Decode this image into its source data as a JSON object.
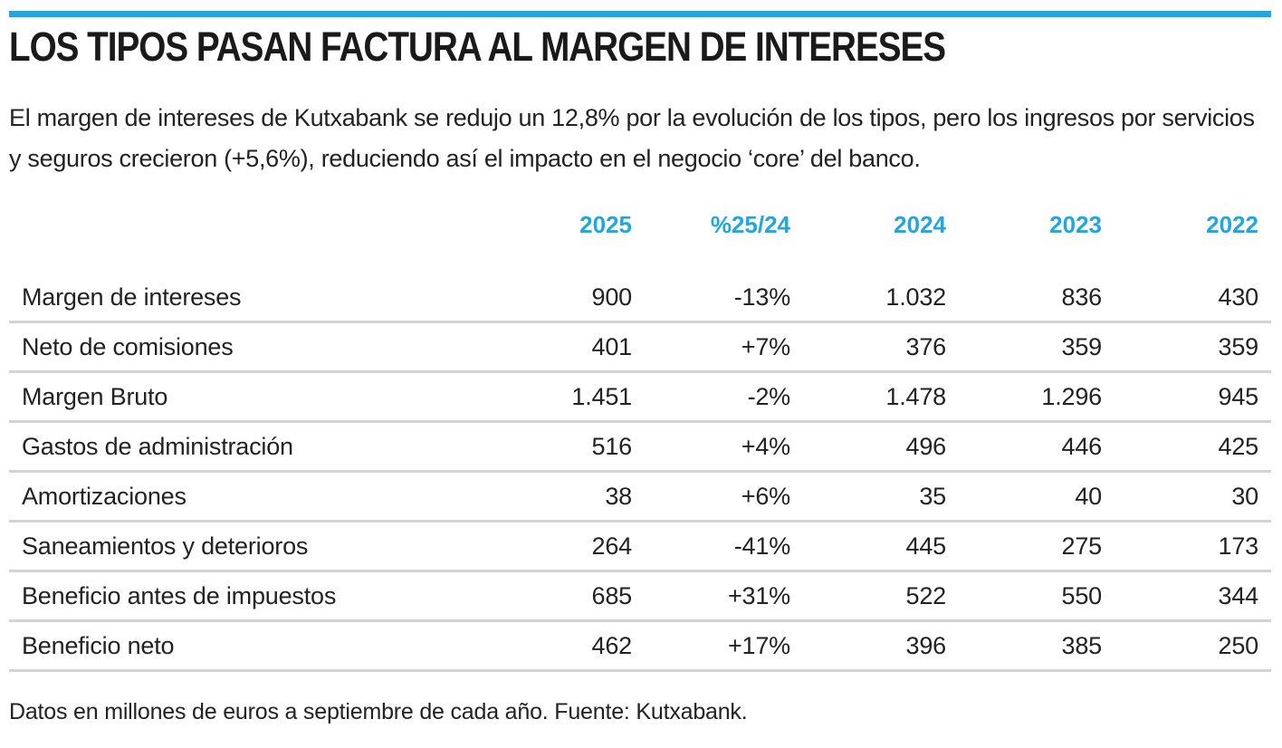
{
  "chart_data": {
    "type": "table",
    "title": "LOS TIPOS PASAN FACTURA AL MARGEN DE INTERESES",
    "subtitle": "El margen de intereses de Kutxabank se redujo un 12,8% por la evolución de los tipos, pero los ingresos por servicios y seguros crecieron (+5,6%), reduciendo así el impacto en el negocio ‘core’ del banco.",
    "columns": [
      "2025",
      "%25/24",
      "2024",
      "2023",
      "2022"
    ],
    "rows": [
      {
        "label": "Margen de intereses",
        "values": [
          "900",
          "-13%",
          "1.032",
          "836",
          "430"
        ]
      },
      {
        "label": "Neto de comisiones",
        "values": [
          "401",
          "+7%",
          "376",
          "359",
          "359"
        ]
      },
      {
        "label": "Margen Bruto",
        "values": [
          "1.451",
          "-2%",
          "1.478",
          "1.296",
          "945"
        ]
      },
      {
        "label": "Gastos de administración",
        "values": [
          "516",
          "+4%",
          "496",
          "446",
          "425"
        ]
      },
      {
        "label": "Amortizaciones",
        "values": [
          "38",
          "+6%",
          "35",
          "40",
          "30"
        ]
      },
      {
        "label": "Saneamientos y deterioros",
        "values": [
          "264",
          "-41%",
          "445",
          "275",
          "173"
        ]
      },
      {
        "label": "Beneficio antes de impuestos",
        "values": [
          "685",
          "+31%",
          "522",
          "550",
          "344"
        ]
      },
      {
        "label": "Beneficio neto",
        "values": [
          "462",
          "+17%",
          "396",
          "385",
          "250"
        ]
      }
    ],
    "footnote": "Datos en millones de euros a septiembre de cada año. Fuente: Kutxabank."
  },
  "colors": {
    "accent": "#1ea7e1",
    "text": "#1a1a1a",
    "divider": "#d3d3d3"
  }
}
